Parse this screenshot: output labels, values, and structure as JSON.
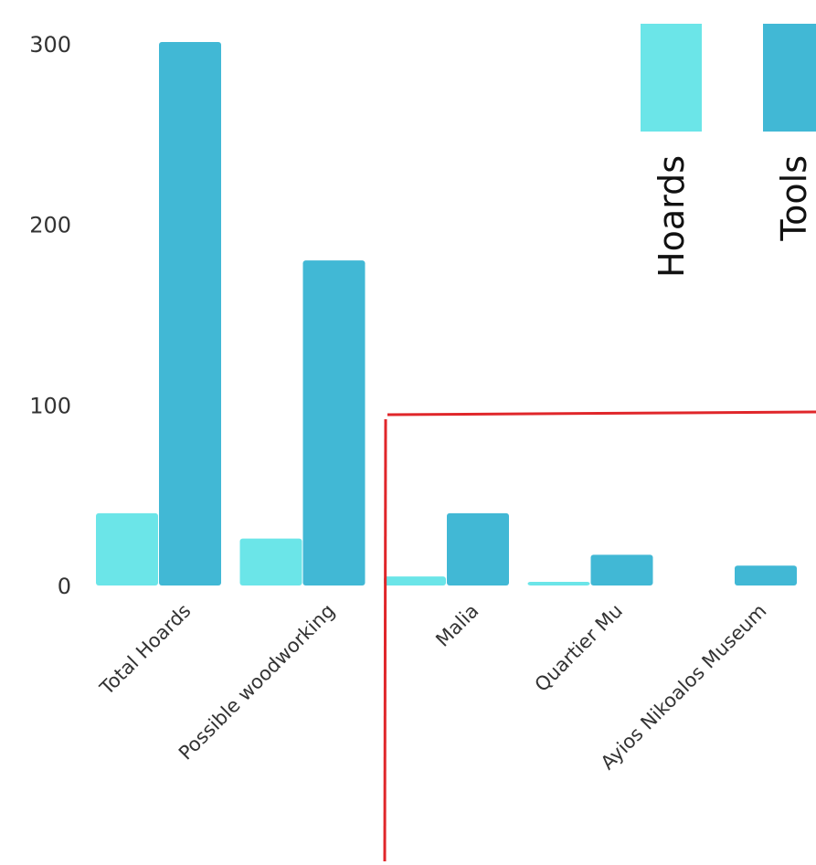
{
  "chart_data": {
    "type": "bar",
    "title": "",
    "xlabel": "",
    "ylabel": "",
    "categories": [
      "Total Hoards",
      "Possible woodworking",
      "Malia",
      "Quartier Mu",
      "Ayios Nikoalos Museum"
    ],
    "series": [
      {
        "name": "Hoards",
        "values": [
          40,
          26,
          5,
          2,
          0
        ],
        "color": "#6be5e8"
      },
      {
        "name": "Tools",
        "values": [
          301,
          180,
          40,
          17,
          11
        ],
        "color": "#41b8d5"
      }
    ],
    "ylim": [
      0,
      301
    ],
    "yticks": [
      0,
      100,
      200,
      300
    ],
    "grid": false,
    "legend": "top-right",
    "annotation": {
      "shape": "red bracket lines",
      "color": "#e0262a"
    }
  }
}
